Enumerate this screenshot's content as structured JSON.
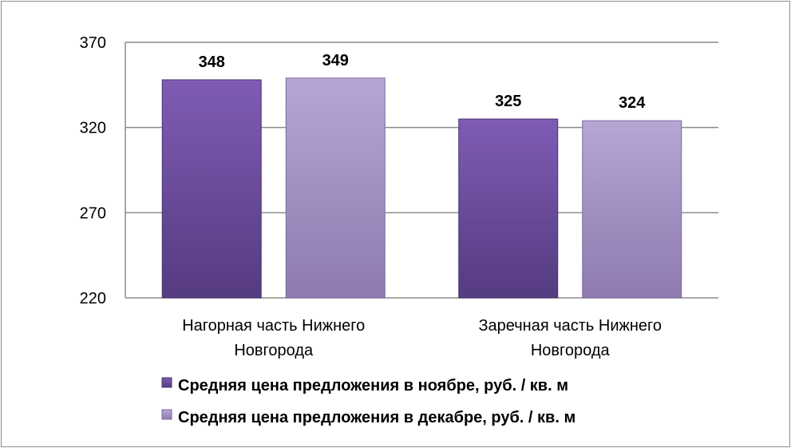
{
  "chart_data": {
    "type": "bar",
    "categories": [
      [
        "Нагорная часть Нижнего",
        "Новгорода"
      ],
      [
        "Заречная часть Нижнего",
        "Новгорода"
      ]
    ],
    "series": [
      {
        "name": "Средняя цена предложения в ноябре, руб. / кв. м",
        "values": [
          348,
          325
        ],
        "color": "#6a4c9c"
      },
      {
        "name": "Средняя цена предложения в декабре, руб. / кв. м",
        "values": [
          349,
          324
        ],
        "color": "#a896c6"
      }
    ],
    "ylim": [
      220,
      370
    ],
    "yticks": [
      220,
      270,
      320,
      370
    ],
    "data_labels": [
      "348",
      "349",
      "325",
      "324"
    ],
    "grid": true,
    "legend_position": "bottom"
  }
}
